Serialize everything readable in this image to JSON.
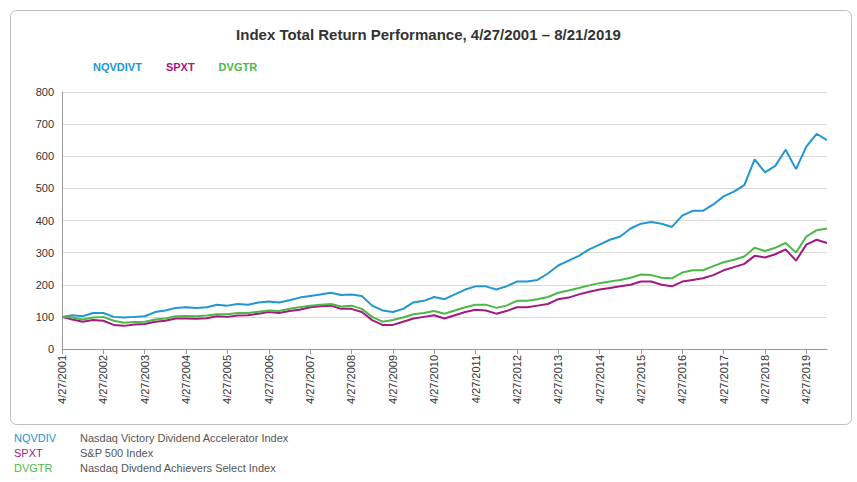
{
  "chart_data": {
    "type": "line",
    "title": "Index Total Return Performance, 4/27/2001 – 8/21/2019",
    "categories": [
      "4/27/2001",
      null,
      null,
      null,
      "4/27/2002",
      null,
      null,
      null,
      "4/27/2003",
      null,
      null,
      null,
      "4/27/2004",
      null,
      null,
      null,
      "4/27/2005",
      null,
      null,
      null,
      "4/27/2006",
      null,
      null,
      null,
      "4/27/2007",
      null,
      null,
      null,
      "4/27/2008",
      null,
      null,
      null,
      "4/27/2009",
      null,
      null,
      null,
      "4/27/2010",
      null,
      null,
      null,
      "4/27/2011",
      null,
      null,
      null,
      "4/27/2012",
      null,
      null,
      null,
      "4/27/2013",
      null,
      null,
      null,
      "4/27/2014",
      null,
      null,
      null,
      "4/27/2015",
      null,
      null,
      null,
      "4/27/2016",
      null,
      null,
      null,
      "4/27/2017",
      null,
      null,
      null,
      "4/27/2018",
      null,
      null,
      null,
      "4/27/2019",
      null,
      null
    ],
    "series": [
      {
        "name": "NQVDIVT",
        "color": "#2196cf",
        "values": [
          100,
          105,
          102,
          112,
          112,
          100,
          98,
          100,
          102,
          115,
          120,
          128,
          130,
          128,
          130,
          138,
          135,
          140,
          138,
          145,
          148,
          145,
          152,
          160,
          165,
          170,
          175,
          168,
          170,
          165,
          135,
          120,
          115,
          125,
          145,
          150,
          162,
          155,
          170,
          185,
          195,
          195,
          185,
          195,
          210,
          210,
          215,
          235,
          260,
          275,
          290,
          310,
          325,
          340,
          350,
          375,
          390,
          395,
          390,
          380,
          415,
          430,
          430,
          450,
          475,
          490,
          510,
          590,
          550,
          570,
          620,
          560,
          630,
          670,
          650
        ]
      },
      {
        "name": "SPXT",
        "color": "#a3197f",
        "values": [
          100,
          92,
          85,
          90,
          88,
          75,
          72,
          76,
          78,
          85,
          88,
          95,
          95,
          94,
          96,
          102,
          100,
          104,
          105,
          110,
          115,
          112,
          118,
          122,
          130,
          133,
          135,
          125,
          125,
          115,
          90,
          75,
          75,
          85,
          95,
          100,
          105,
          95,
          105,
          115,
          122,
          120,
          110,
          118,
          130,
          130,
          135,
          140,
          155,
          160,
          170,
          178,
          185,
          190,
          195,
          200,
          210,
          210,
          200,
          195,
          210,
          215,
          220,
          230,
          245,
          255,
          265,
          290,
          285,
          295,
          310,
          275,
          325,
          340,
          330
        ]
      },
      {
        "name": "DVGTR",
        "color": "#4cb847",
        "values": [
          100,
          98,
          92,
          98,
          100,
          88,
          82,
          84,
          85,
          92,
          95,
          102,
          103,
          102,
          104,
          108,
          108,
          112,
          112,
          116,
          120,
          118,
          125,
          130,
          135,
          138,
          140,
          132,
          135,
          125,
          100,
          85,
          90,
          98,
          108,
          112,
          118,
          110,
          120,
          130,
          138,
          138,
          128,
          135,
          150,
          150,
          155,
          162,
          175,
          182,
          190,
          198,
          205,
          210,
          215,
          222,
          232,
          230,
          222,
          220,
          238,
          245,
          245,
          258,
          270,
          278,
          288,
          315,
          305,
          315,
          330,
          300,
          350,
          370,
          375
        ]
      }
    ],
    "ylim": [
      0,
      800
    ],
    "yticks": [
      0,
      100,
      200,
      300,
      400,
      500,
      600,
      700,
      800
    ],
    "grid": true,
    "legend": "top-left",
    "notes": [
      {
        "code": "NQVDIV",
        "text": "Nasdaq Victory Dividend Accelerator Index",
        "color": "#2196cf"
      },
      {
        "code": "SPXT",
        "text": "S&P 500 Index",
        "color": "#a3197f"
      },
      {
        "code": "DVGTR",
        "text": "Nasdaq Divdend Achievers Select Index",
        "color": "#4cb847"
      }
    ]
  }
}
